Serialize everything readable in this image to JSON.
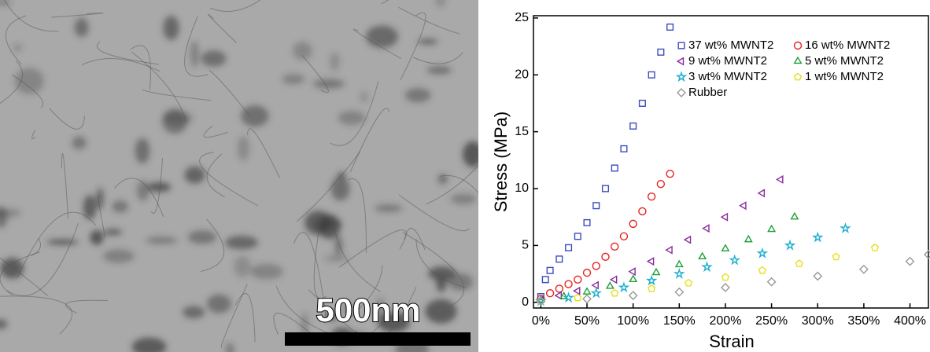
{
  "image": {
    "scale_label": "500nm"
  },
  "chart_data": {
    "type": "scatter",
    "x_label": "Strain",
    "y_label": "Stress (MPa)",
    "xlim": [
      -8,
      420
    ],
    "ylim": [
      -0.5,
      25.2
    ],
    "xticks": [
      {
        "value": 0,
        "label": "0%"
      },
      {
        "value": 50,
        "label": "50%"
      },
      {
        "value": 100,
        "label": "100%"
      },
      {
        "value": 150,
        "label": "150%"
      },
      {
        "value": 200,
        "label": "200%"
      },
      {
        "value": 250,
        "label": "250%"
      },
      {
        "value": 300,
        "label": "300%"
      },
      {
        "value": 350,
        "label": "350%"
      },
      {
        "value": 400,
        "label": "400%"
      }
    ],
    "yticks": [
      0,
      5,
      10,
      15,
      20,
      25
    ],
    "legend": "upper right",
    "series": [
      {
        "name": "37 wt% MWNT2",
        "color": "#3b4cc0",
        "marker": "square",
        "x": [
          0,
          5,
          10,
          20,
          30,
          40,
          50,
          60,
          70,
          80,
          90,
          100,
          110,
          120,
          130,
          140
        ],
        "values": [
          0.5,
          2,
          2.8,
          3.8,
          4.8,
          5.8,
          7,
          8.5,
          10,
          11.8,
          13.5,
          15.5,
          17.5,
          20,
          22,
          24.2
        ]
      },
      {
        "name": "16 wt% MWNT2",
        "color": "#e8231f",
        "marker": "circle",
        "x": [
          0,
          10,
          20,
          30,
          40,
          50,
          60,
          70,
          80,
          90,
          100,
          110,
          120,
          130,
          140
        ],
        "values": [
          0.3,
          0.8,
          1.2,
          1.6,
          2,
          2.6,
          3.2,
          4,
          4.9,
          5.8,
          6.9,
          8,
          9.3,
          10.4,
          11.3
        ]
      },
      {
        "name": "9 wt% MWNT2",
        "color": "#8b2b9e",
        "marker": "triangle-left",
        "x": [
          0,
          20,
          40,
          60,
          80,
          100,
          120,
          140,
          160,
          180,
          200,
          220,
          240,
          260
        ],
        "values": [
          0.2,
          0.6,
          1,
          1.5,
          2,
          2.7,
          3.6,
          4.6,
          5.5,
          6.5,
          7.5,
          8.5,
          9.6,
          10.8
        ]
      },
      {
        "name": "5 wt% MWNT2",
        "color": "#1f9e3a",
        "marker": "triangle-up",
        "x": [
          0,
          25,
          50,
          75,
          100,
          125,
          150,
          175,
          200,
          225,
          250,
          275
        ],
        "values": [
          0.2,
          0.5,
          0.9,
          1.4,
          2,
          2.6,
          3.3,
          4,
          4.7,
          5.5,
          6.4,
          7.5
        ]
      },
      {
        "name": "3 wt% MWNT2",
        "color": "#1fb0d0",
        "marker": "star",
        "x": [
          0,
          30,
          60,
          90,
          120,
          150,
          180,
          210,
          240,
          270,
          300,
          330
        ],
        "values": [
          0.1,
          0.4,
          0.8,
          1.3,
          1.9,
          2.5,
          3.1,
          3.7,
          4.3,
          5,
          5.7,
          6.5
        ]
      },
      {
        "name": "1 wt% MWNT2",
        "color": "#e6e020",
        "marker": "pentagon",
        "x": [
          0,
          40,
          80,
          120,
          160,
          200,
          240,
          280,
          320,
          362
        ],
        "values": [
          0.1,
          0.4,
          0.8,
          1.2,
          1.7,
          2.2,
          2.8,
          3.4,
          4,
          4.8
        ]
      },
      {
        "name": "Rubber",
        "color": "#999999",
        "marker": "diamond",
        "x": [
          0,
          50,
          100,
          150,
          200,
          250,
          300,
          350,
          400,
          420
        ],
        "values": [
          0.1,
          0.3,
          0.6,
          0.9,
          1.3,
          1.8,
          2.3,
          2.9,
          3.6,
          4.2
        ]
      }
    ]
  }
}
